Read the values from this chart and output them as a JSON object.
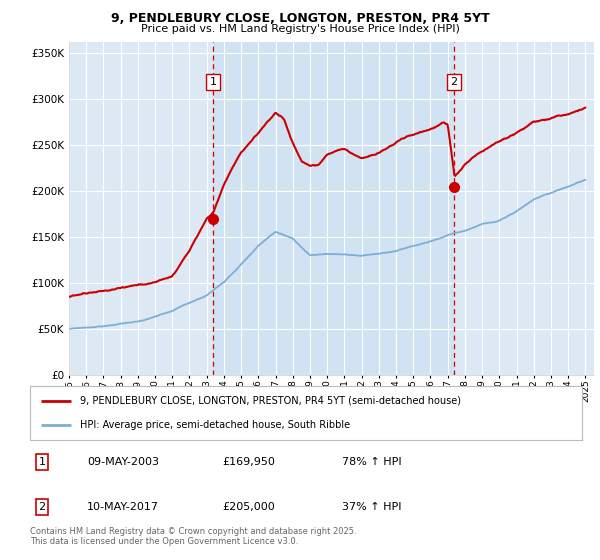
{
  "title": "9, PENDLEBURY CLOSE, LONGTON, PRESTON, PR4 5YT",
  "subtitle": "Price paid vs. HM Land Registry's House Price Index (HPI)",
  "ytick_values": [
    0,
    50000,
    100000,
    150000,
    200000,
    250000,
    300000,
    350000
  ],
  "ylim": [
    0,
    362000
  ],
  "xlim_start": 1995.0,
  "xlim_end": 2025.5,
  "purchase1_x": 2003.36,
  "purchase1_y": 169950,
  "purchase2_x": 2017.36,
  "purchase2_y": 205000,
  "line_property_color": "#cc0000",
  "line_hpi_color": "#7bafd4",
  "background_color": "#dce9f5",
  "shaded_color": "#dce9f5",
  "grid_color": "#ffffff",
  "fig_background": "#f0f0f0",
  "legend_label_property": "9, PENDLEBURY CLOSE, LONGTON, PRESTON, PR4 5YT (semi-detached house)",
  "legend_label_hpi": "HPI: Average price, semi-detached house, South Ribble",
  "footnote": "Contains HM Land Registry data © Crown copyright and database right 2025.\nThis data is licensed under the Open Government Licence v3.0.",
  "table_entries": [
    {
      "num": "1",
      "date": "09-MAY-2003",
      "price": "£169,950",
      "pct": "78% ↑ HPI"
    },
    {
      "num": "2",
      "date": "10-MAY-2017",
      "price": "£205,000",
      "pct": "37% ↑ HPI"
    }
  ]
}
